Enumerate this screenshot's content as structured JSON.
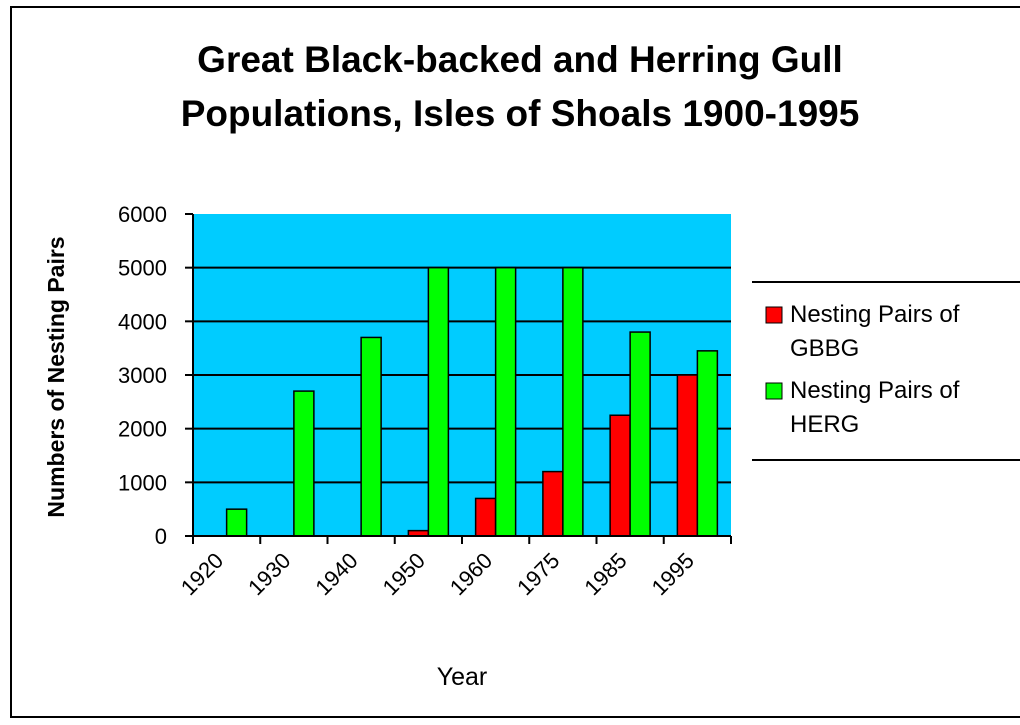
{
  "chart_data": {
    "type": "bar",
    "title_lines": [
      "Great Black-backed and Herring Gull",
      "Populations, Isles of Shoals 1900-1995"
    ],
    "xlabel": "Year",
    "ylabel": "Numbers of Nesting Pairs",
    "categories": [
      "1920",
      "1930",
      "1940",
      "1950",
      "1960",
      "1975",
      "1985",
      "1995"
    ],
    "y_ticks": [
      "0",
      "1000",
      "2000",
      "3000",
      "4000",
      "5000",
      "6000"
    ],
    "ylim": [
      0,
      6000
    ],
    "grid": "horizontal",
    "legend_position": "right",
    "series": [
      {
        "name": "Nesting Pairs of GBBG",
        "legend_lines": [
          "Nesting Pairs of",
          "GBBG"
        ],
        "color": "#ff0000",
        "values": [
          0,
          0,
          0,
          100,
          700,
          1200,
          2250,
          3000
        ]
      },
      {
        "name": "Nesting Pairs of HERG",
        "legend_lines": [
          "Nesting Pairs of",
          "HERG"
        ],
        "color": "#00ff00",
        "values": [
          500,
          2700,
          3700,
          5000,
          5000,
          5000,
          3800,
          3450
        ]
      }
    ],
    "plot_background": "#00ccff"
  }
}
